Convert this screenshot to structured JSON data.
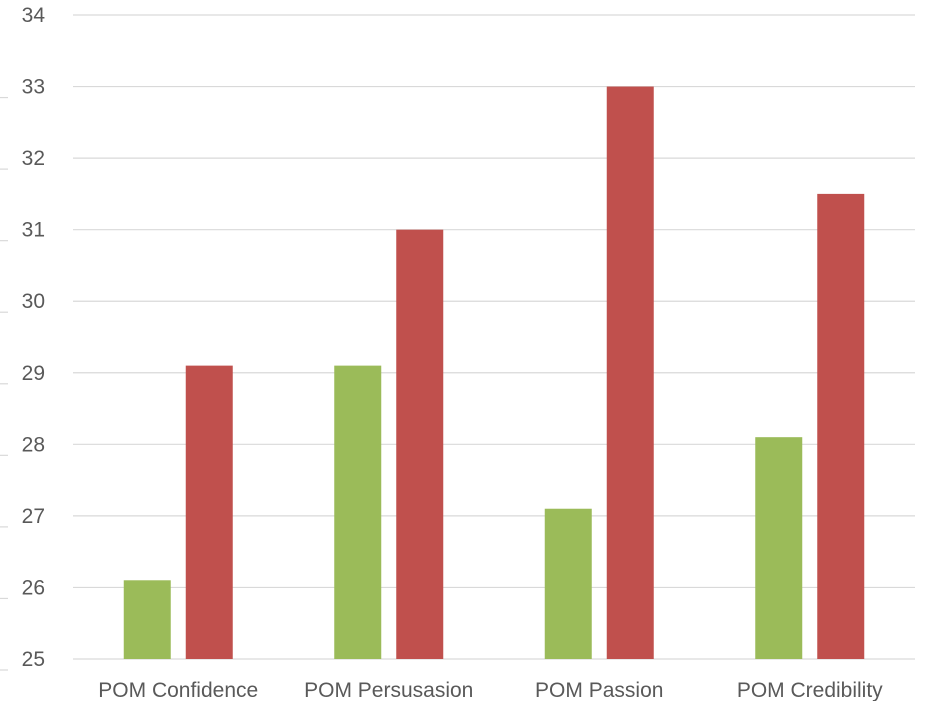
{
  "chart_data": {
    "type": "bar",
    "title": "",
    "xlabel": "",
    "ylabel": "",
    "categories": [
      "POM Confidence",
      "POM Persusasion",
      "POM Passion",
      "POM Credibility"
    ],
    "series": [
      {
        "color": "#9bbb59",
        "values": [
          26.1,
          29.1,
          27.1,
          28.1
        ]
      },
      {
        "color": "#c0504d",
        "values": [
          29.1,
          31,
          33,
          31.5
        ]
      }
    ],
    "ylim": [
      25,
      34
    ],
    "yticks": [
      25,
      26,
      27,
      28,
      29,
      30,
      31,
      32,
      33,
      34
    ],
    "grid": true,
    "legend": "none"
  }
}
